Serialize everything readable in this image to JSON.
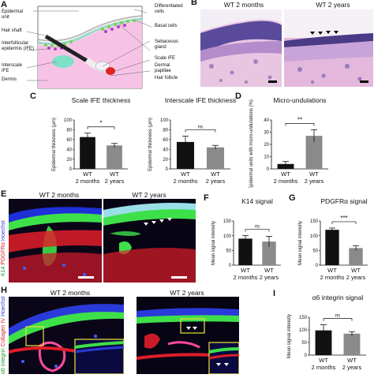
{
  "panels": {
    "A": {
      "letter": "A",
      "labels_left": [
        "Epidermal unit",
        "Hair shaft",
        "Interfollicular epidermis (IFE)",
        "Interscale IFE",
        "Dermis"
      ],
      "labels_right": [
        "Differentiated cells",
        "Basal cells",
        "Sebaceous gland",
        "Scale IFE",
        "Dermal papillae",
        "Hair follicle"
      ]
    },
    "B": {
      "letter": "B",
      "left_title": "WT 2 months",
      "right_title": "WT 2 years"
    },
    "C": {
      "letter": "C"
    },
    "D": {
      "letter": "D"
    },
    "E": {
      "letter": "E",
      "left_title": "WT 2 months",
      "right_title": "WT 2 years",
      "side_label_1": "K14",
      "side_label_2": "PDGFRα",
      "side_label_3": "Hoechst"
    },
    "F": {
      "letter": "F"
    },
    "G": {
      "letter": "G"
    },
    "H": {
      "letter": "H",
      "left_title": "WT 2 months",
      "right_title": "WT 2 years",
      "side_label_1": "α6 integrin",
      "side_label_2": "Collagen IV",
      "side_label_3": "Hoechst"
    },
    "I": {
      "letter": "I"
    }
  },
  "chart_data": [
    {
      "id": "C1",
      "type": "bar",
      "title": "Scale IFE thickness",
      "ylabel": "Epidermal thickness (μm)",
      "categories": [
        "WT 2 months",
        "WT 2 years"
      ],
      "values": [
        65,
        48
      ],
      "errors": [
        8,
        4
      ],
      "ylim": [
        0,
        100
      ],
      "yticks": [
        0,
        20,
        40,
        60,
        80,
        100
      ],
      "significance": "*"
    },
    {
      "id": "C2",
      "type": "bar",
      "title": "Interscale IFE thickness",
      "ylabel": "Epidermal thickness (μm)",
      "categories": [
        "WT 2 months",
        "WT 2 years"
      ],
      "values": [
        55,
        44
      ],
      "errors": [
        12,
        4
      ],
      "ylim": [
        0,
        100
      ],
      "yticks": [
        0,
        20,
        40,
        60,
        80,
        100
      ],
      "significance": "ns"
    },
    {
      "id": "D",
      "type": "bar",
      "title": "Micro-undulations",
      "ylabel": "Epidermal units with micro-undulations (%)",
      "categories": [
        "WT 2 months",
        "WT 2 years"
      ],
      "values": [
        4,
        27
      ],
      "errors": [
        2,
        5
      ],
      "ylim": [
        0,
        40
      ],
      "yticks": [
        0,
        10,
        20,
        30,
        40
      ],
      "significance": "**"
    },
    {
      "id": "F",
      "type": "bar",
      "title": "K14 signal",
      "ylabel": "Mean signal intensity",
      "categories": [
        "WT 2 months",
        "WT 2 years"
      ],
      "values": [
        90,
        80
      ],
      "errors": [
        10,
        18
      ],
      "ylim": [
        0,
        150
      ],
      "yticks": [
        0,
        50,
        100,
        150
      ],
      "significance": "ns"
    },
    {
      "id": "G",
      "type": "bar",
      "title": "PDGFRα signal",
      "ylabel": "Mean signal intensity",
      "categories": [
        "WT 2 months",
        "WT 2 years"
      ],
      "values": [
        120,
        58
      ],
      "errors": [
        6,
        8
      ],
      "ylim": [
        0,
        150
      ],
      "yticks": [
        0,
        50,
        100,
        150
      ],
      "significance": "***"
    },
    {
      "id": "I",
      "type": "bar",
      "title": "α6 integrin signal",
      "ylabel": "Mean signal intensity",
      "categories": [
        "WT 2 months",
        "WT 2 years"
      ],
      "values": [
        98,
        85
      ],
      "errors": [
        22,
        8
      ],
      "ylim": [
        0,
        150
      ],
      "yticks": [
        0,
        50,
        100,
        150
      ],
      "significance": "ns"
    }
  ],
  "colors": {
    "histology_pink": "#e7a9d4",
    "histology_purple": "#4a3b86",
    "green": "#3ee04a",
    "red": "#e01e2a",
    "blue": "#1b2cc8",
    "bar_dark": "#111111",
    "bar_grey": "#8a8a8a"
  }
}
